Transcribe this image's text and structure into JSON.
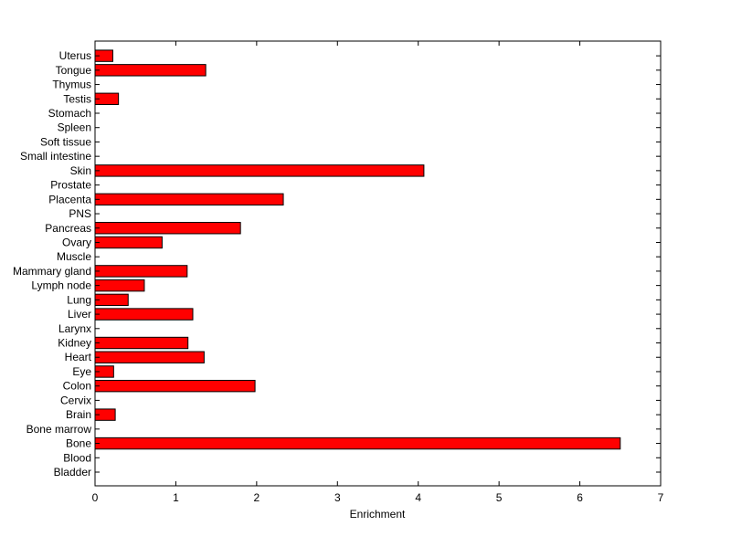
{
  "chart_data": {
    "type": "bar",
    "orientation": "horizontal",
    "title": "",
    "xlabel": "Enrichment",
    "ylabel": "",
    "xlim": [
      0,
      7
    ],
    "xticks": [
      0,
      1,
      2,
      3,
      4,
      5,
      6,
      7
    ],
    "grid": false,
    "legend": "none",
    "bar_color": "#ff0000",
    "bar_edge_color": "#000000",
    "categories": [
      "Bladder",
      "Blood",
      "Bone",
      "Bone marrow",
      "Brain",
      "Cervix",
      "Colon",
      "Eye",
      "Heart",
      "Kidney",
      "Larynx",
      "Liver",
      "Lung",
      "Lymph node",
      "Mammary gland",
      "Muscle",
      "Ovary",
      "Pancreas",
      "PNS",
      "Placenta",
      "Prostate",
      "Skin",
      "Small intestine",
      "Soft tissue",
      "Spleen",
      "Stomach",
      "Testis",
      "Thymus",
      "Tongue",
      "Uterus"
    ],
    "values": [
      0,
      0,
      6.5,
      0,
      0.25,
      0,
      1.98,
      0.23,
      1.35,
      1.15,
      0,
      1.21,
      0.41,
      0.61,
      1.14,
      0,
      0.83,
      1.8,
      0,
      2.33,
      0,
      4.07,
      0,
      0,
      0,
      0,
      0.29,
      0,
      1.37,
      0.22
    ]
  }
}
